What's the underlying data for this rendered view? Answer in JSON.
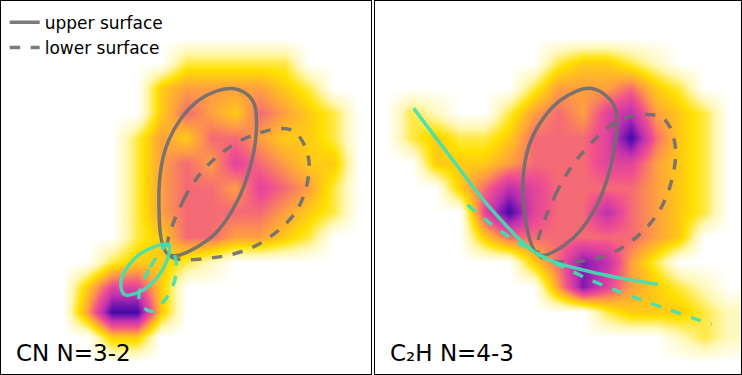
{
  "chart_data": [
    {
      "type": "heatmap",
      "title": "CN N=3-2",
      "tick_labels": false,
      "legend": "upper left",
      "xlim": [
        0,
        375
      ],
      "ylim": [
        375,
        0
      ],
      "zlim": [
        0,
        10
      ],
      "x": [
        12.5,
        37.5,
        62.5,
        87.5,
        112.5,
        137.5,
        162.5,
        187.5,
        212.5,
        237.5,
        262.5,
        287.5,
        312.5,
        337.5,
        362.5
      ],
      "y": [
        12.5,
        37.5,
        62.5,
        87.5,
        112.5,
        137.5,
        162.5,
        187.5,
        212.5,
        237.5,
        262.5,
        287.5,
        312.5,
        337.5,
        362.5
      ],
      "z": [
        [
          0,
          0,
          0,
          0,
          0,
          0,
          0,
          0,
          0,
          0,
          0,
          0,
          0,
          0,
          0
        ],
        [
          0,
          0,
          0,
          0,
          0,
          0,
          0,
          0,
          0,
          0,
          0,
          0,
          0,
          0,
          0
        ],
        [
          0,
          0,
          0,
          0,
          0,
          0,
          0,
          2,
          2,
          2,
          2,
          2,
          0,
          0,
          0
        ],
        [
          0,
          0,
          0,
          0,
          0,
          0,
          3,
          4,
          4,
          4,
          4,
          3,
          2,
          0,
          0
        ],
        [
          0,
          0,
          0,
          0,
          0,
          0,
          3,
          5,
          4,
          3,
          5,
          4,
          3,
          2,
          0
        ],
        [
          0,
          0,
          0,
          0,
          0,
          2,
          4,
          3,
          5,
          5,
          4,
          3,
          3,
          2,
          0
        ],
        [
          0,
          0,
          0,
          0,
          0,
          2,
          4,
          5,
          4,
          6,
          5,
          4,
          3,
          3,
          0
        ],
        [
          0,
          0,
          0,
          0,
          0,
          2,
          4,
          5,
          5,
          4,
          6,
          5,
          4,
          2,
          0
        ],
        [
          0,
          0,
          0,
          0,
          0,
          2,
          4,
          5,
          5,
          5,
          5,
          4,
          3,
          2,
          0
        ],
        [
          0,
          0,
          0,
          0,
          0,
          2,
          3,
          5,
          5,
          4,
          4,
          3,
          2,
          0,
          0
        ],
        [
          0,
          0,
          0,
          0,
          2,
          3,
          3,
          2,
          1,
          0,
          0,
          0,
          0,
          0,
          0
        ],
        [
          0,
          0,
          0,
          3,
          6,
          6,
          3,
          0,
          0,
          0,
          0,
          0,
          0,
          0,
          0
        ],
        [
          0,
          0,
          0,
          4,
          9,
          9,
          3,
          0,
          0,
          0,
          0,
          0,
          0,
          0,
          0
        ],
        [
          0,
          0,
          0,
          0,
          3,
          3,
          0,
          0,
          0,
          0,
          0,
          0,
          0,
          0,
          0
        ],
        [
          0,
          0,
          0,
          0,
          0,
          0,
          0,
          0,
          0,
          0,
          0,
          0,
          0,
          0,
          0
        ]
      ],
      "series": [
        {
          "name": "upper surface",
          "color": "#6e6e6e",
          "line_style": "solid",
          "x": [
            170,
            160,
            170,
            200,
            235,
            255,
            258,
            240,
            210,
            170
          ],
          "y": [
            255,
            200,
            140,
            100,
            88,
            100,
            140,
            200,
            240,
            255
          ]
        },
        {
          "name": "lower surface",
          "color": "#6e6e6e",
          "line_style": "dashed",
          "x": [
            170,
            185,
            215,
            255,
            295,
            312,
            300,
            260,
            215,
            170
          ],
          "y": [
            255,
            200,
            160,
            135,
            130,
            160,
            210,
            245,
            258,
            255
          ]
        },
        {
          "color": "#3fe0b4",
          "line_style": "solid",
          "x": [
            170,
            140,
            122,
            125,
            145,
            165,
            170
          ],
          "y": [
            245,
            255,
            280,
            295,
            290,
            268,
            245
          ]
        },
        {
          "color": "#3fe0b4",
          "line_style": "dashed",
          "x": [
            170,
            150,
            140,
            152,
            170,
            178,
            170
          ],
          "y": [
            245,
            270,
            300,
            312,
            295,
            268,
            245
          ]
        }
      ]
    },
    {
      "type": "heatmap",
      "title": "C₂H N=4-3",
      "tick_labels": false,
      "xlim": [
        0,
        375
      ],
      "ylim": [
        375,
        0
      ],
      "zlim": [
        0,
        10
      ],
      "x": [
        12.5,
        37.5,
        62.5,
        87.5,
        112.5,
        137.5,
        162.5,
        187.5,
        212.5,
        237.5,
        262.5,
        287.5,
        312.5,
        337.5,
        362.5
      ],
      "y": [
        12.5,
        37.5,
        62.5,
        87.5,
        112.5,
        137.5,
        162.5,
        187.5,
        212.5,
        237.5,
        262.5,
        287.5,
        312.5,
        337.5,
        362.5
      ],
      "z": [
        [
          0,
          0,
          0,
          0,
          0,
          0,
          0,
          0,
          0,
          0,
          0,
          0,
          0,
          0,
          0
        ],
        [
          0,
          0,
          0,
          0,
          0,
          0,
          0,
          0,
          0,
          0,
          0,
          0,
          0,
          0,
          0
        ],
        [
          0,
          0,
          0,
          0,
          0,
          0,
          0,
          2,
          3,
          3,
          2,
          1,
          0,
          0,
          0
        ],
        [
          0,
          0,
          0,
          0,
          0,
          0,
          2,
          4,
          4,
          4,
          5,
          3,
          2,
          0,
          0
        ],
        [
          0,
          2,
          1,
          0,
          0,
          2,
          4,
          5,
          4,
          6,
          7,
          4,
          3,
          2,
          0
        ],
        [
          0,
          2,
          3,
          2,
          2,
          3,
          5,
          5,
          5,
          6,
          9,
          5,
          3,
          2,
          0
        ],
        [
          0,
          0,
          3,
          3,
          3,
          4,
          5,
          5,
          5,
          6,
          6,
          4,
          3,
          2,
          0
        ],
        [
          0,
          0,
          0,
          3,
          5,
          7,
          6,
          5,
          5,
          5,
          5,
          4,
          3,
          2,
          0
        ],
        [
          0,
          0,
          0,
          0,
          6,
          9,
          6,
          5,
          5,
          7,
          5,
          4,
          3,
          2,
          0
        ],
        [
          0,
          0,
          0,
          0,
          3,
          5,
          5,
          5,
          5,
          5,
          5,
          4,
          3,
          0,
          0
        ],
        [
          0,
          0,
          0,
          0,
          0,
          0,
          3,
          5,
          8,
          7,
          4,
          2,
          0,
          0,
          0
        ],
        [
          0,
          0,
          0,
          0,
          0,
          0,
          0,
          4,
          8,
          6,
          4,
          3,
          2,
          1,
          0
        ],
        [
          0,
          0,
          0,
          0,
          0,
          0,
          0,
          0,
          0,
          2,
          3,
          3,
          3,
          2,
          1
        ],
        [
          0,
          0,
          0,
          0,
          0,
          0,
          0,
          0,
          0,
          0,
          0,
          0,
          1,
          2,
          1
        ],
        [
          0,
          0,
          0,
          0,
          0,
          0,
          0,
          0,
          0,
          0,
          0,
          0,
          0,
          0,
          0
        ]
      ],
      "series": [
        {
          "color": "#6e6e6e",
          "line_style": "solid",
          "x": [
            168,
            152,
            160,
            190,
            222,
            245,
            245,
            225,
            195,
            168
          ],
          "y": [
            255,
            200,
            140,
            100,
            88,
            105,
            150,
            210,
            245,
            255
          ]
        },
        {
          "color": "#6e6e6e",
          "line_style": "dashed",
          "x": [
            168,
            185,
            215,
            255,
            295,
            308,
            292,
            250,
            205,
            168
          ],
          "y": [
            255,
            195,
            150,
            118,
            118,
            150,
            210,
            250,
            262,
            255
          ]
        },
        {
          "color": "#3fe0b4",
          "line_style": "solid",
          "x": [
            40,
            80,
            120,
            168,
            220,
            290
          ],
          "y": [
            108,
            160,
            210,
            255,
            272,
            285
          ]
        },
        {
          "color": "#3fe0b4",
          "line_style": "dashed",
          "x": [
            95,
            130,
            168,
            220,
            280,
            345
          ],
          "y": [
            205,
            232,
            255,
            280,
            303,
            325
          ]
        }
      ]
    }
  ]
}
